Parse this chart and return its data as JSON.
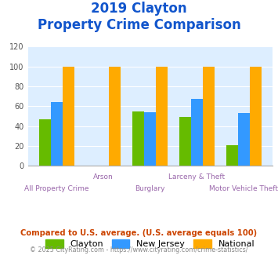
{
  "title_line1": "2019 Clayton",
  "title_line2": "Property Crime Comparison",
  "categories": [
    "All Property Crime",
    "Arson",
    "Burglary",
    "Larceny & Theft",
    "Motor Vehicle Theft"
  ],
  "clayton": [
    47,
    0,
    55,
    49,
    21
  ],
  "newjersey": [
    64,
    0,
    54,
    67,
    53
  ],
  "national": [
    100,
    100,
    100,
    100,
    100
  ],
  "color_clayton": "#66bb00",
  "color_newjersey": "#3399ff",
  "color_national": "#ffaa00",
  "ylim": [
    0,
    120
  ],
  "yticks": [
    0,
    20,
    40,
    60,
    80,
    100,
    120
  ],
  "xlabel_color": "#9966aa",
  "title_color": "#1155cc",
  "legend_labels": [
    "Clayton",
    "New Jersey",
    "National"
  ],
  "footer_text1": "Compared to U.S. average. (U.S. average equals 100)",
  "footer_text2": "© 2025 CityRating.com - https://www.cityrating.com/crime-statistics/",
  "footer_color1": "#cc4400",
  "footer_color2": "#888888",
  "plot_bg": "#ddeeff"
}
